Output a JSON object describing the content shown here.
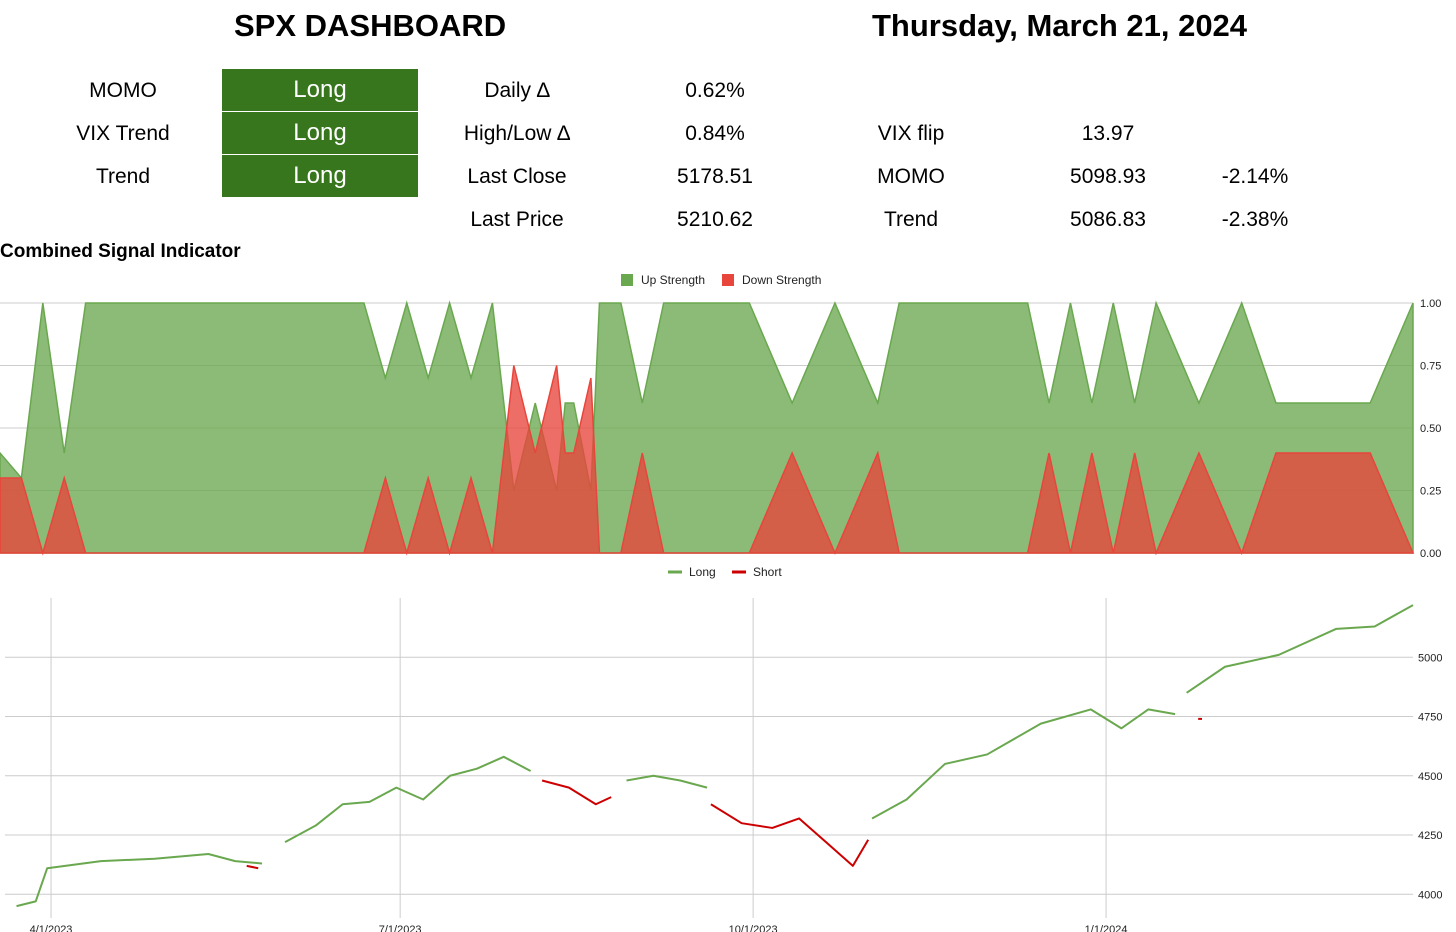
{
  "header": {
    "title": "SPX DASHBOARD",
    "date": "Thursday, March 21, 2024"
  },
  "signals": [
    {
      "label": "MOMO",
      "value": "Long"
    },
    {
      "label": "VIX Trend",
      "value": "Long"
    },
    {
      "label": "Trend",
      "value": "Long"
    }
  ],
  "stats": [
    {
      "label": "Daily ∆",
      "value": "0.62%"
    },
    {
      "label": "High/Low ∆",
      "value": "0.84%"
    },
    {
      "label": "Last Close",
      "value": "5178.51"
    },
    {
      "label": "Last Price",
      "value": "5210.62"
    }
  ],
  "levels": [
    {
      "label": "VIX flip",
      "value": "13.97",
      "pct": ""
    },
    {
      "label": "MOMO",
      "value": "5098.93",
      "pct": "-2.14%"
    },
    {
      "label": "Trend",
      "value": "5086.83",
      "pct": "-2.38%"
    }
  ],
  "colors": {
    "signal_bg": "#38761d",
    "up": "#6aa84f",
    "down": "#e8453c",
    "long_line": "#6aa84f",
    "short_line": "#cc0000"
  },
  "chart_data": [
    {
      "type": "area",
      "title": "Combined Signal Indicator",
      "legend": "top-center",
      "ylim": [
        0,
        1
      ],
      "yticks": [
        "0.00",
        "0.25",
        "0.50",
        "0.75",
        "1.00"
      ],
      "series": [
        {
          "name": "Up Strength",
          "x": [
            0,
            0.5,
            1,
            1.5,
            2,
            2.5,
            3.5,
            6,
            8.5,
            9,
            9.5,
            10,
            10.5,
            11,
            11.5,
            12,
            12.5,
            13,
            13.2,
            13.4,
            13.8,
            14,
            14.5,
            15,
            15.5,
            17.5,
            18.5,
            19.5,
            20.5,
            21,
            22,
            24,
            24.5,
            25,
            25.5,
            26,
            26.5,
            27,
            28,
            29,
            29.8,
            30.5,
            32,
            33
          ],
          "values": [
            0.4,
            0.3,
            1,
            0.4,
            1,
            1,
            1,
            1,
            1,
            0.7,
            1,
            0.7,
            1,
            0.7,
            1,
            0.25,
            0.6,
            0.25,
            0.6,
            0.6,
            0.25,
            1,
            1,
            0.6,
            1,
            1,
            0.6,
            1,
            0.6,
            1,
            1,
            1,
            0.6,
            1,
            0.6,
            1,
            0.6,
            1,
            0.6,
            1,
            0.6,
            0.6,
            0.6,
            1
          ]
        },
        {
          "name": "Down Strength",
          "x": [
            0,
            0.5,
            1,
            1.5,
            2,
            3.5,
            6,
            8.5,
            9,
            9.5,
            10,
            10.5,
            11,
            11.5,
            12,
            12.5,
            13,
            13.2,
            13.4,
            13.8,
            14,
            14.5,
            15,
            15.5,
            17.5,
            18.5,
            19.5,
            20.5,
            21,
            22,
            24,
            24.5,
            25,
            25.5,
            26,
            26.5,
            27,
            28,
            29,
            29.8,
            30.5,
            32,
            33
          ],
          "values": [
            0.3,
            0.3,
            0,
            0.3,
            0,
            0,
            0,
            0,
            0.3,
            0,
            0.3,
            0,
            0.3,
            0,
            0.75,
            0.4,
            0.75,
            0.4,
            0.4,
            0.7,
            0,
            0,
            0.4,
            0,
            0,
            0.4,
            0,
            0.4,
            0,
            0,
            0,
            0.4,
            0,
            0.4,
            0,
            0.4,
            0,
            0.4,
            0,
            0.4,
            0.4,
            0.4,
            0
          ]
        }
      ]
    },
    {
      "type": "line",
      "legend": "top-center",
      "xticks": [
        "4/1/2023",
        "7/1/2023",
        "10/1/2023",
        "1/1/2024"
      ],
      "ylim": [
        3900,
        5250
      ],
      "yticks": [
        "4000",
        "4250",
        "4500",
        "4750",
        "5000"
      ],
      "series": [
        {
          "name": "Long",
          "segments": [
            {
              "x": [
                "2023-03-23",
                "2023-03-28",
                "2023-03-31",
                "2023-04-14",
                "2023-04-28",
                "2023-05-12",
                "2023-05-19",
                "2023-05-26"
              ],
              "y": [
                3950,
                3970,
                4110,
                4140,
                4150,
                4170,
                4140,
                4130
              ]
            },
            {
              "x": [
                "2023-06-01",
                "2023-06-09",
                "2023-06-16",
                "2023-06-23",
                "2023-06-30",
                "2023-07-07",
                "2023-07-14",
                "2023-07-21",
                "2023-07-28",
                "2023-08-04"
              ],
              "y": [
                4220,
                4290,
                4380,
                4390,
                4450,
                4400,
                4500,
                4530,
                4580,
                4520
              ]
            },
            {
              "x": [
                "2023-08-29",
                "2023-09-05",
                "2023-09-12",
                "2023-09-19"
              ],
              "y": [
                4480,
                4500,
                4480,
                4450
              ]
            },
            {
              "x": [
                "2023-11-01",
                "2023-11-10",
                "2023-11-20",
                "2023-12-01",
                "2023-12-15",
                "2023-12-28",
                "2024-01-05",
                "2024-01-12",
                "2024-01-19"
              ],
              "y": [
                4320,
                4400,
                4550,
                4590,
                4720,
                4780,
                4700,
                4780,
                4760
              ]
            },
            {
              "x": [
                "2024-01-22",
                "2024-02-01",
                "2024-02-15",
                "2024-03-01",
                "2024-03-11",
                "2024-03-21"
              ],
              "y": [
                4850,
                4960,
                5010,
                5120,
                5130,
                5220
              ]
            }
          ]
        },
        {
          "name": "Short",
          "segments": [
            {
              "x": [
                "2023-05-22",
                "2023-05-25"
              ],
              "y": [
                4120,
                4110
              ]
            },
            {
              "x": [
                "2023-08-07",
                "2023-08-14",
                "2023-08-21",
                "2023-08-25"
              ],
              "y": [
                4480,
                4450,
                4380,
                4410
              ]
            },
            {
              "x": [
                "2023-09-20",
                "2023-09-28",
                "2023-10-06",
                "2023-10-13",
                "2023-10-20",
                "2023-10-27",
                "2023-10-31"
              ],
              "y": [
                4380,
                4300,
                4280,
                4320,
                4220,
                4120,
                4230
              ]
            },
            {
              "x": [
                "2024-01-25",
                "2024-01-26"
              ],
              "y": [
                4740,
                4740
              ]
            }
          ]
        }
      ]
    }
  ]
}
